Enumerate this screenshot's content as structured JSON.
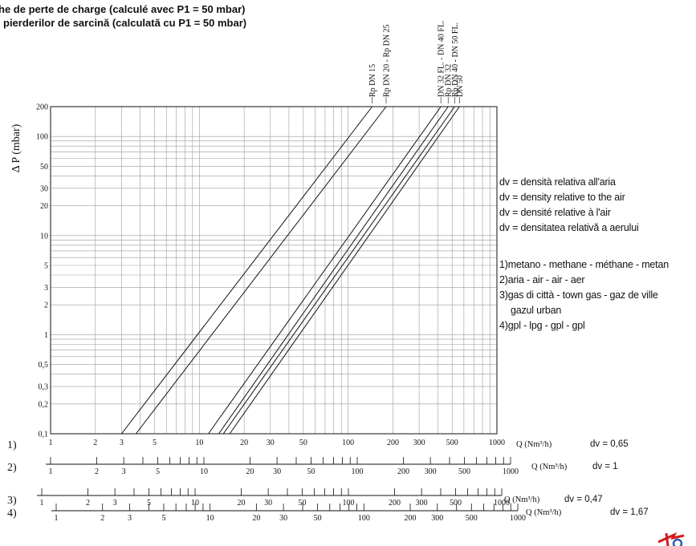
{
  "header": {
    "title_line_1": "he de perte de charge (calculé avec P1 = 50 mbar)",
    "title_line_2": " pierderilor de sarcină (calculată cu P1 = 50 mbar)"
  },
  "legend": {
    "dv_lines": [
      "dv = densità relativa all'aria",
      "dv = density relative to the air",
      "dv = densité relative à l'air",
      "dv = densitatea relativă a aerului"
    ],
    "gas_lines": [
      "1)metano - methane - méthane - metan",
      "2)aria - air - air - aer",
      "3)gas di città - town gas - gaz de ville",
      "gazul urban",
      "4)gpl - lpg - gpl - gpl"
    ]
  },
  "chart_data": {
    "type": "line",
    "ylabel": "Δ P (mbar)",
    "xlabel": "Q (Nm³/h)",
    "x_scale": "log",
    "y_scale": "log",
    "xlim": [
      1,
      1000
    ],
    "ylim": [
      0.1,
      200
    ],
    "grid": true,
    "y_ticks": [
      "200",
      "100",
      "50",
      "30",
      "20",
      "10",
      "5",
      "3",
      "2",
      "1",
      "0,5",
      "0,3",
      "0,2",
      "0,1"
    ],
    "y_tick_values": [
      200,
      100,
      50,
      30,
      20,
      10,
      5,
      3,
      2,
      1,
      0.5,
      0.3,
      0.2,
      0.1
    ],
    "x_ticks": [
      "1",
      "2",
      "3",
      "5",
      "10",
      "20",
      "30",
      "50",
      "100",
      "200",
      "300",
      "500",
      "1000"
    ],
    "x_tick_values": [
      1,
      2,
      3,
      5,
      10,
      20,
      30,
      50,
      100,
      200,
      300,
      500,
      1000
    ],
    "series": [
      {
        "name": "Rp DN 15",
        "x": [
          3.0,
          145
        ],
        "y": [
          0.1,
          200
        ]
      },
      {
        "name": "Rp DN 20 - Rp DN 25",
        "x": [
          3.75,
          180
        ],
        "y": [
          0.1,
          200
        ]
      },
      {
        "name": "DN 32 FL. -  DN 40 FL.",
        "x": [
          11.5,
          420
        ],
        "y": [
          0.1,
          200
        ]
      },
      {
        "name": "Rp DN 32",
        "x": [
          13.5,
          470
        ],
        "y": [
          0.1,
          200
        ]
      },
      {
        "name": "Rp DN 40 - DN 50 FL.",
        "x": [
          14.5,
          520
        ],
        "y": [
          0.1,
          200
        ]
      },
      {
        "name": "DN 50",
        "x": [
          16.0,
          560
        ],
        "y": [
          0.1,
          200
        ]
      }
    ]
  },
  "scales": [
    {
      "label": "1)",
      "dv": "dv = 0,65",
      "unit": "Q (Nm³/h)",
      "ticks": [
        "1",
        "2",
        "3",
        "5",
        "10",
        "20",
        "30",
        "50",
        "100",
        "200",
        "300",
        "500",
        "1000"
      ]
    },
    {
      "label": "2)",
      "dv": "dv = 1",
      "unit": "Q (Nm³/h)",
      "ticks": [
        "1",
        "2",
        "3",
        "5",
        "10",
        "20",
        "30",
        "50",
        "100",
        "200",
        "300",
        "500",
        "1000"
      ]
    },
    {
      "label": "3)",
      "dv": "dv = 0,47",
      "unit": "Q (Nm³/h)",
      "ticks": [
        "1",
        "2",
        "3",
        "5",
        "10",
        "20",
        "30",
        "50",
        "100",
        "200",
        "300",
        "500",
        "1000"
      ]
    },
    {
      "label": "4)",
      "dv": "dv = 1,67",
      "unit": "Q (Nm³/h)",
      "ticks": [
        "1",
        "2",
        "3",
        "5",
        "10",
        "20",
        "30",
        "50",
        "100",
        "200",
        "300",
        "500",
        "1000"
      ]
    }
  ],
  "colors": {
    "ink": "#111111",
    "grid": "#9a9a9a",
    "logo_red": "#d31a1a",
    "logo_blue": "#2a5db0"
  }
}
